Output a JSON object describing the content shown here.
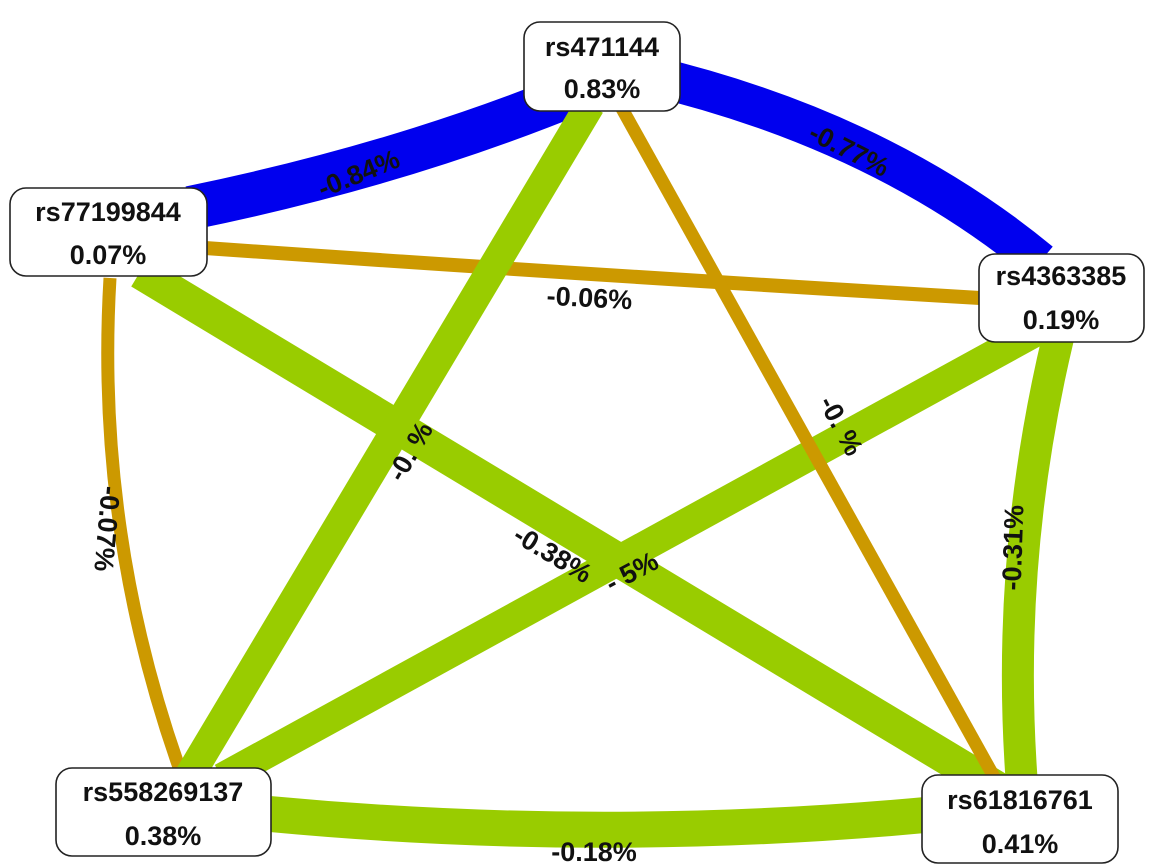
{
  "colors": {
    "strong_negative": "#0000ee",
    "moderate_negative": "#99cc00",
    "weak_negative": "#cc9900"
  },
  "nodes": [
    {
      "id": "rs471144",
      "name": "rs471144",
      "value": "0.83%"
    },
    {
      "id": "rs77199844",
      "name": "rs77199844",
      "value": "0.07%"
    },
    {
      "id": "rs4363385",
      "name": "rs4363385",
      "value": "0.19%"
    },
    {
      "id": "rs558269137",
      "name": "rs558269137",
      "value": "0.38%"
    },
    {
      "id": "rs61816761",
      "name": "rs61816761",
      "value": "0.41%"
    }
  ],
  "edges": [
    {
      "source": "rs471144",
      "target": "rs77199844",
      "label": "-0.84%",
      "color": "strong_negative"
    },
    {
      "source": "rs471144",
      "target": "rs4363385",
      "label": "-0.77%",
      "color": "strong_negative"
    },
    {
      "source": "rs77199844",
      "target": "rs4363385",
      "label": "-0.06%",
      "color": "weak_negative"
    },
    {
      "source": "rs77199844",
      "target": "rs558269137",
      "label": "-0.07%",
      "color": "weak_negative"
    },
    {
      "source": "rs4363385",
      "target": "rs61816761",
      "label": "-0.31%",
      "color": "moderate_negative"
    },
    {
      "source": "rs558269137",
      "target": "rs61816761",
      "label": "-0.18%",
      "color": "moderate_negative"
    },
    {
      "source": "rs77199844",
      "target": "rs61816761",
      "label": "-0.38%",
      "color": "moderate_negative"
    },
    {
      "source": "rs471144",
      "target": "rs558269137",
      "label": "-0.   %",
      "color": "moderate_negative"
    },
    {
      "source": "rs4363385",
      "target": "rs558269137",
      "label": "-    5%",
      "color": "moderate_negative"
    },
    {
      "source": "rs471144",
      "target": "rs61816761",
      "label": "-0.  %",
      "color": "weak_negative"
    }
  ]
}
